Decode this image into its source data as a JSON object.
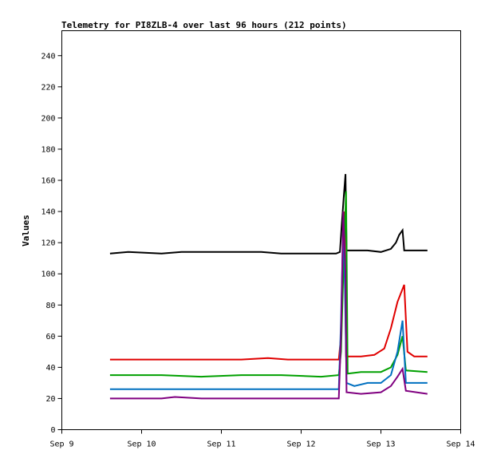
{
  "chart_data": {
    "type": "line",
    "title": "Telemetry for PI8ZLB-4 over last 96 hours (212 points)",
    "xlabel": "",
    "ylabel": "Values",
    "x_unit": "date",
    "x_ticks": [
      "Sep 9",
      "Sep 10",
      "Sep 11",
      "Sep 12",
      "Sep 13",
      "Sep 14"
    ],
    "xlim": [
      "Sep 9",
      "Sep 14"
    ],
    "ylim": [
      0,
      256
    ],
    "y_ticks": [
      0,
      20,
      40,
      60,
      80,
      100,
      120,
      140,
      160,
      180,
      200,
      220,
      240
    ],
    "grid": false,
    "legend": "none",
    "series": [
      {
        "color": "#000000",
        "points": [
          [
            "Sep 9 14:30",
            113
          ],
          [
            "Sep 9 20:00",
            114
          ],
          [
            "Sep 10 06:00",
            113
          ],
          [
            "Sep 10 12:00",
            114
          ],
          [
            "Sep 10 20:00",
            114
          ],
          [
            "Sep 11 04:00",
            114
          ],
          [
            "Sep 11 12:00",
            114
          ],
          [
            "Sep 11 18:00",
            113
          ],
          [
            "Sep 12 06:00",
            113
          ],
          [
            "Sep 12 10:30",
            113
          ],
          [
            "Sep 12 11:40",
            114
          ],
          [
            "Sep 12 12:10",
            130
          ],
          [
            "Sep 12 12:50",
            150
          ],
          [
            "Sep 12 13:20",
            164
          ],
          [
            "Sep 12 13:40",
            115
          ],
          [
            "Sep 12 16:00",
            115
          ],
          [
            "Sep 12 20:00",
            115
          ],
          [
            "Sep 13 00:00",
            114
          ],
          [
            "Sep 13 03:00",
            116
          ],
          [
            "Sep 13 04:30",
            120
          ],
          [
            "Sep 13 05:30",
            125
          ],
          [
            "Sep 13 06:30",
            128
          ],
          [
            "Sep 13 07:00",
            115
          ],
          [
            "Sep 13 14:00",
            115
          ]
        ]
      },
      {
        "color": "#e00000",
        "points": [
          [
            "Sep 9 14:30",
            45
          ],
          [
            "Sep 10 06:00",
            45
          ],
          [
            "Sep 10 18:00",
            45
          ],
          [
            "Sep 11 06:00",
            45
          ],
          [
            "Sep 11 14:00",
            46
          ],
          [
            "Sep 11 20:00",
            45
          ],
          [
            "Sep 12 06:00",
            45
          ],
          [
            "Sep 12 11:20",
            45
          ],
          [
            "Sep 12 12:00",
            60
          ],
          [
            "Sep 12 12:30",
            110
          ],
          [
            "Sep 12 13:00",
            140
          ],
          [
            "Sep 12 13:30",
            47
          ],
          [
            "Sep 12 18:00",
            47
          ],
          [
            "Sep 12 22:00",
            48
          ],
          [
            "Sep 13 01:00",
            52
          ],
          [
            "Sep 13 03:00",
            65
          ],
          [
            "Sep 13 05:00",
            82
          ],
          [
            "Sep 13 07:00",
            93
          ],
          [
            "Sep 13 08:00",
            50
          ],
          [
            "Sep 13 10:00",
            47
          ],
          [
            "Sep 13 14:00",
            47
          ]
        ]
      },
      {
        "color": "#00a000",
        "points": [
          [
            "Sep 9 14:30",
            35
          ],
          [
            "Sep 10 06:00",
            35
          ],
          [
            "Sep 10 18:00",
            34
          ],
          [
            "Sep 11 06:00",
            35
          ],
          [
            "Sep 11 18:00",
            35
          ],
          [
            "Sep 12 06:00",
            34
          ],
          [
            "Sep 12 11:20",
            35
          ],
          [
            "Sep 12 12:00",
            50
          ],
          [
            "Sep 12 12:40",
            100
          ],
          [
            "Sep 12 13:30",
            153
          ],
          [
            "Sep 12 14:00",
            36
          ],
          [
            "Sep 12 18:00",
            37
          ],
          [
            "Sep 13 00:00",
            37
          ],
          [
            "Sep 13 03:00",
            40
          ],
          [
            "Sep 13 05:00",
            48
          ],
          [
            "Sep 13 06:30",
            60
          ],
          [
            "Sep 13 07:30",
            38
          ],
          [
            "Sep 13 14:00",
            37
          ]
        ]
      },
      {
        "color": "#0070c0",
        "points": [
          [
            "Sep 9 14:30",
            26
          ],
          [
            "Sep 10 12:00",
            26
          ],
          [
            "Sep 11 12:00",
            26
          ],
          [
            "Sep 12 11:20",
            26
          ],
          [
            "Sep 12 12:00",
            70
          ],
          [
            "Sep 12 12:40",
            135
          ],
          [
            "Sep 12 13:10",
            90
          ],
          [
            "Sep 12 13:40",
            30
          ],
          [
            "Sep 12 16:00",
            28
          ],
          [
            "Sep 12 20:00",
            30
          ],
          [
            "Sep 13 00:00",
            30
          ],
          [
            "Sep 13 03:00",
            35
          ],
          [
            "Sep 13 05:00",
            50
          ],
          [
            "Sep 13 06:30",
            70
          ],
          [
            "Sep 13 07:30",
            30
          ],
          [
            "Sep 13 14:00",
            30
          ]
        ]
      },
      {
        "color": "#800080",
        "points": [
          [
            "Sep 9 14:30",
            20
          ],
          [
            "Sep 10 06:00",
            20
          ],
          [
            "Sep 10 10:00",
            21
          ],
          [
            "Sep 10 18:00",
            20
          ],
          [
            "Sep 11 12:00",
            20
          ],
          [
            "Sep 12 06:00",
            20
          ],
          [
            "Sep 12 11:20",
            20
          ],
          [
            "Sep 12 12:00",
            60
          ],
          [
            "Sep 12 12:40",
            140
          ],
          [
            "Sep 12 13:20",
            100
          ],
          [
            "Sep 12 13:40",
            24
          ],
          [
            "Sep 12 18:00",
            23
          ],
          [
            "Sep 13 00:00",
            24
          ],
          [
            "Sep 13 03:00",
            28
          ],
          [
            "Sep 13 05:00",
            34
          ],
          [
            "Sep 13 06:30",
            39
          ],
          [
            "Sep 13 07:30",
            25
          ],
          [
            "Sep 13 14:00",
            23
          ]
        ]
      }
    ]
  }
}
